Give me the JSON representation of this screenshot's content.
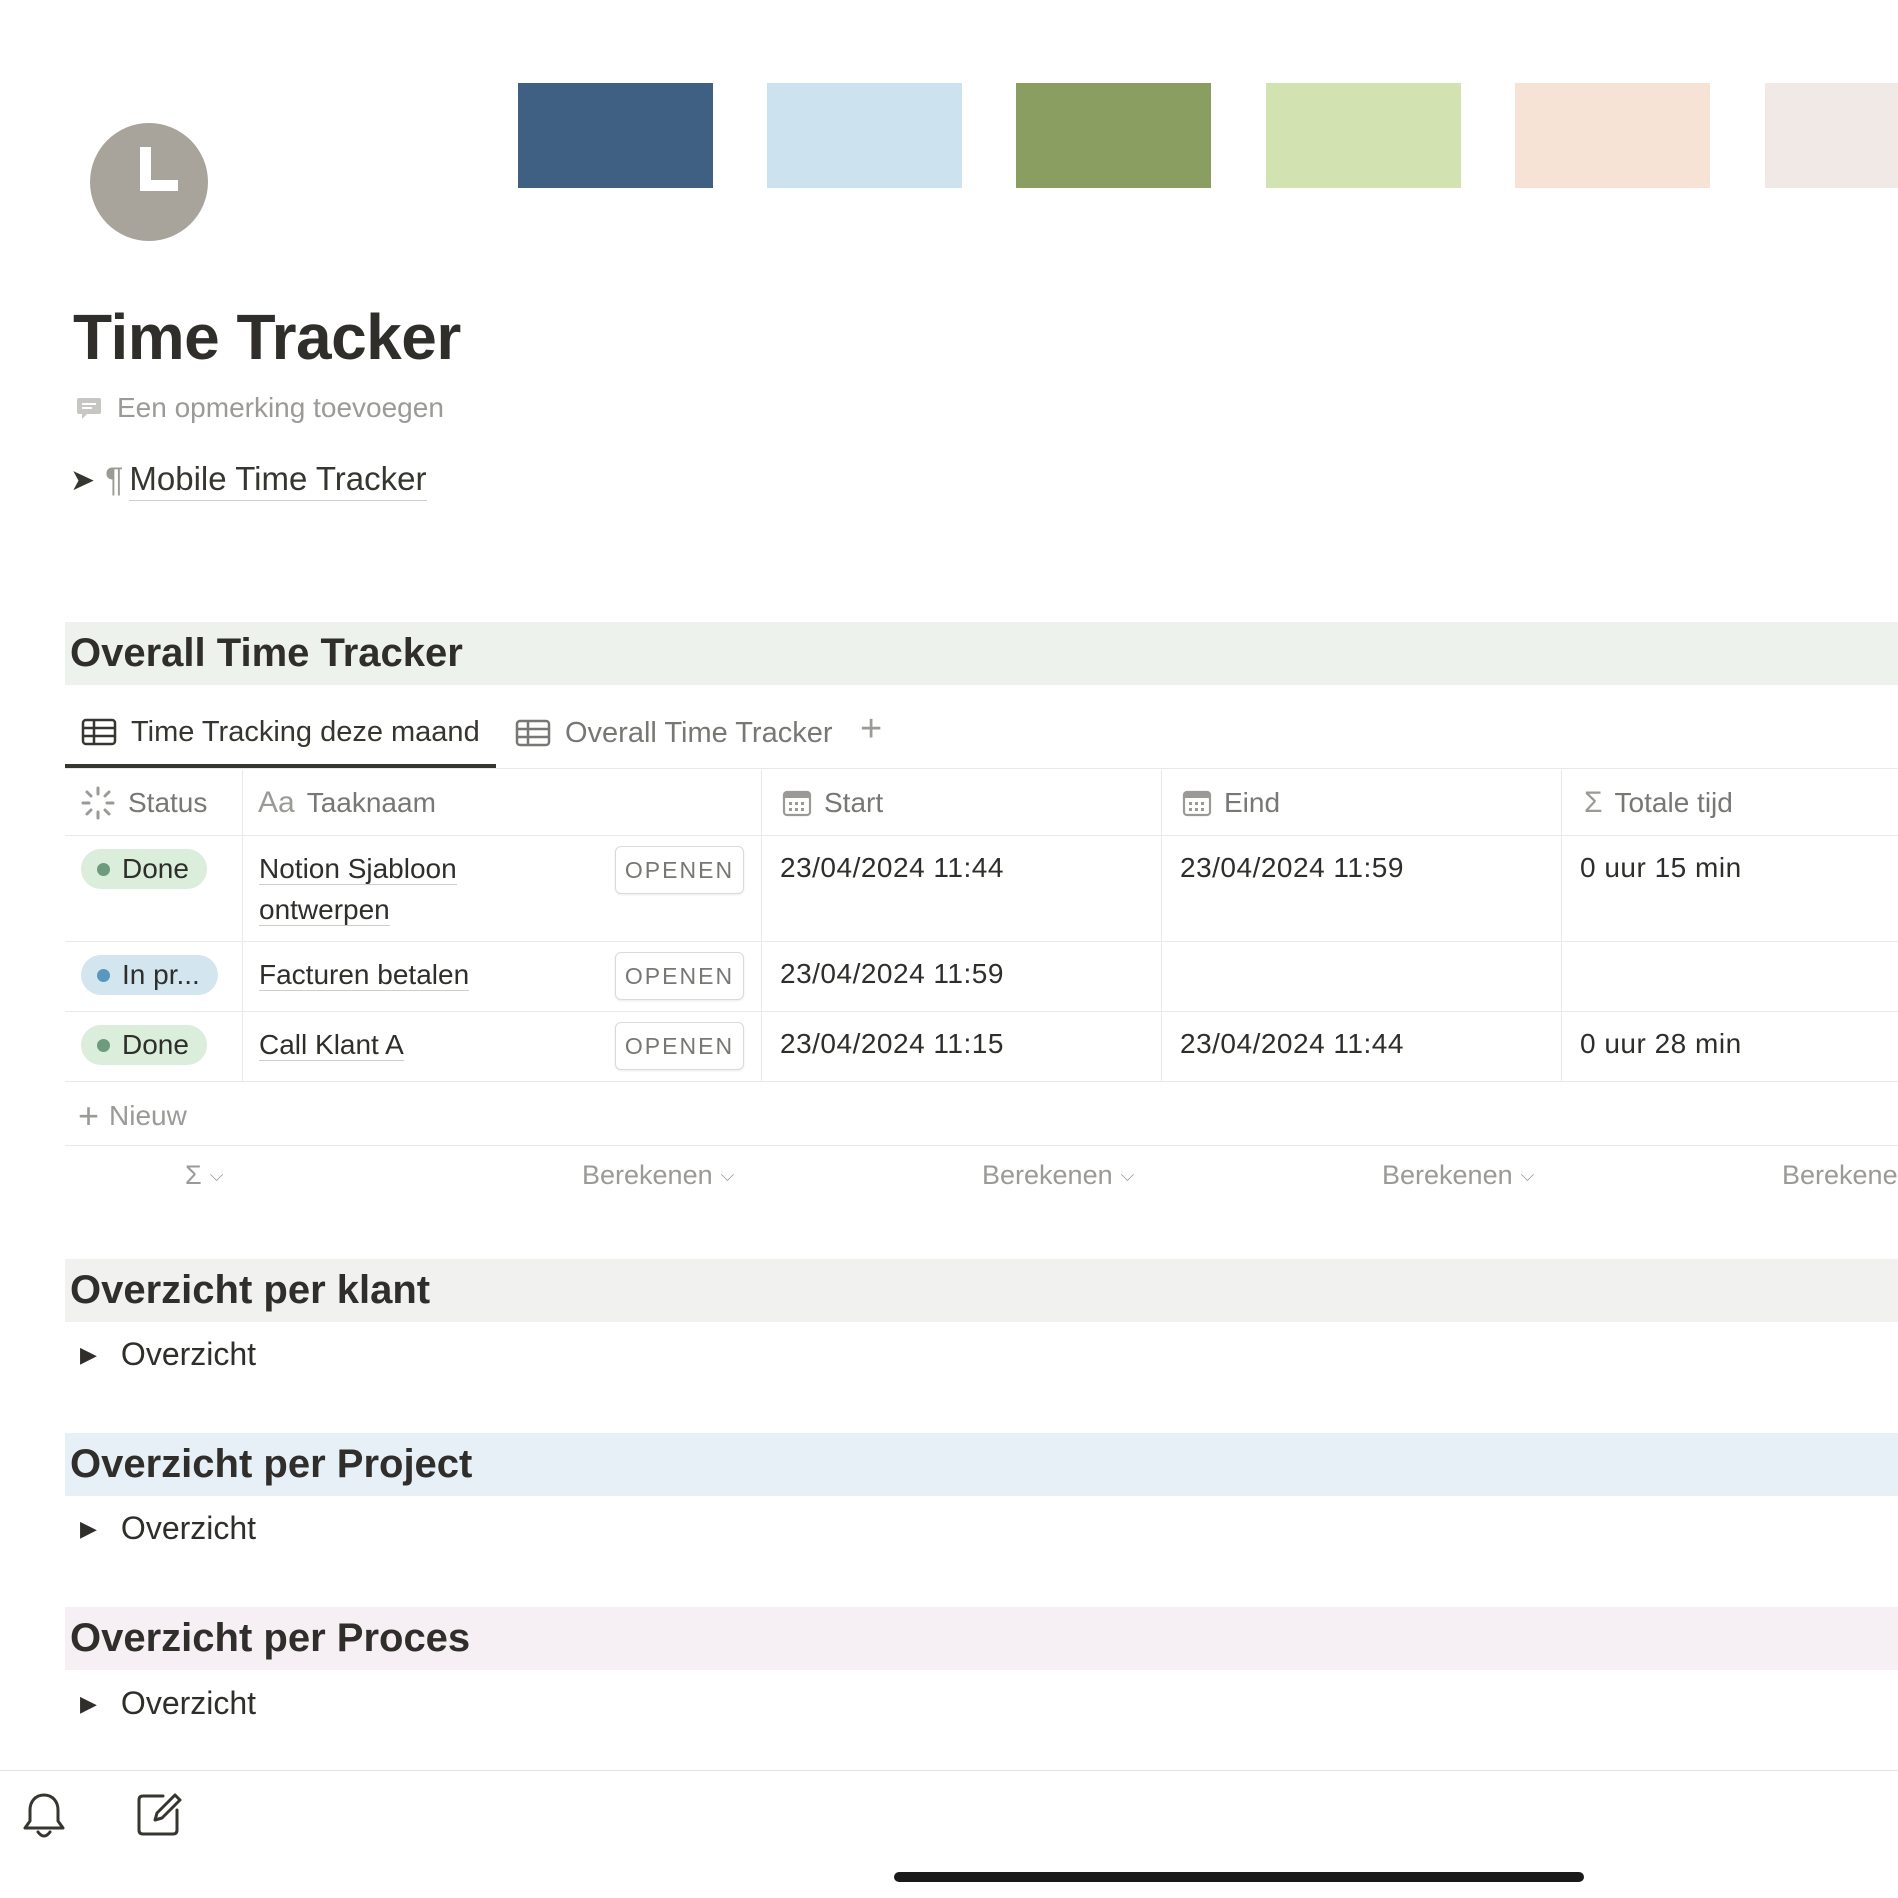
{
  "cover": {
    "swatch_colors": [
      "#3f6083",
      "#cce3ef",
      "#8a9e61",
      "#d2e2b1",
      "#f7e2d6",
      "#f1e9e6"
    ]
  },
  "page": {
    "icon": "clock-icon",
    "title": "Time Tracker",
    "comment_placeholder": "Een opmerking toevoegen",
    "toggle_link_label": "Mobile Time Tracker"
  },
  "sections": {
    "overall": {
      "heading": "Overall Time Tracker",
      "bg": "#edf3ec"
    },
    "klant": {
      "heading": "Overzicht per klant",
      "bg": "#f1f1ef",
      "toggle": "Overzicht"
    },
    "project": {
      "heading": "Overzicht per Project",
      "bg": "#e7f0f7",
      "toggle": "Overzicht"
    },
    "proces": {
      "heading": "Overzicht per Proces",
      "bg": "#f6eff3",
      "toggle": "Overzicht"
    }
  },
  "tabs": [
    {
      "label": "Time Tracking deze maand",
      "active": true
    },
    {
      "label": "Overall Time Tracker",
      "active": false
    }
  ],
  "table": {
    "columns": {
      "status": "Status",
      "taaknaam_prefix": "Aa",
      "taaknaam": "Taaknaam",
      "start": "Start",
      "eind": "Eind",
      "totale_tijd": "Totale tijd"
    },
    "open_label": "OPENEN",
    "rows": [
      {
        "status": "Done",
        "status_color": "#6c9b7d",
        "status_bg": "#dbeddb",
        "task_line1": "Notion Sjabloon",
        "task_line2": "ontwerpen",
        "start": "23/04/2024 11:44",
        "eind": "23/04/2024 11:59",
        "totale_tijd": "0 uur 15 min"
      },
      {
        "status": "In pr...",
        "status_color": "#5b97bd",
        "status_bg": "#d3e5ef",
        "task_line1": "Facturen betalen",
        "task_line2": "",
        "start": "23/04/2024 11:59",
        "eind": "",
        "totale_tijd": ""
      },
      {
        "status": "Done",
        "status_color": "#6c9b7d",
        "status_bg": "#dbeddb",
        "task_line1": "Call Klant A",
        "task_line2": "",
        "start": "23/04/2024 11:15",
        "eind": "23/04/2024 11:44",
        "totale_tijd": "0 uur 28 min"
      }
    ],
    "new_label": "Nieuw",
    "calc_status": "Σ",
    "calc_label": "Berekenen",
    "calc_label_cut": "Berekene"
  }
}
